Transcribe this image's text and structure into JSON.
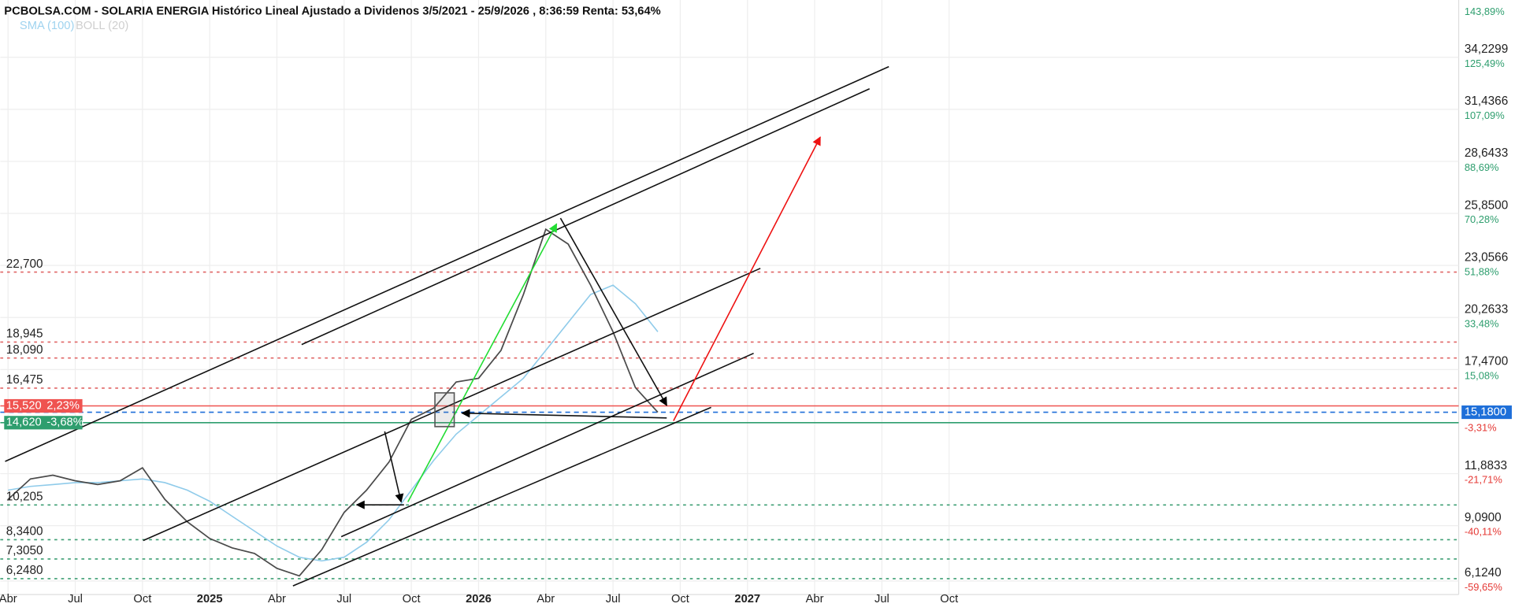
{
  "chart_data": {
    "type": "line",
    "title": "PCBOLSA.COM - SOLARIA ENERGIA Histórico Lineal Ajustado a Dividenos 3/5/2021 - 25/9/2026 , 8:36:59 Renta: 53,64%",
    "indicators": [
      "SMA (100)",
      "BOLL (20)"
    ],
    "categories": [
      "Abr",
      null,
      null,
      "Jul",
      null,
      null,
      "Oct",
      null,
      null,
      "2025",
      null,
      null,
      "Abr",
      null,
      null,
      "Jul",
      null,
      null,
      "Oct",
      null,
      null,
      "2026",
      null,
      null,
      "Abr",
      null,
      null,
      "Jul",
      null,
      null,
      "Oct",
      null,
      null,
      "2027",
      null,
      null,
      "Abr",
      null,
      null,
      "Jul",
      null,
      null,
      "Oct",
      null
    ],
    "values": [
      10.5,
      11.6,
      11.8,
      11.5,
      11.3,
      11.5,
      12.2,
      10.5,
      9.3,
      8.4,
      7.9,
      7.6,
      6.8,
      6.4,
      7.8,
      9.8,
      11.0,
      12.5,
      14.8,
      15.4,
      16.8,
      17.0,
      18.5,
      21.5,
      25.0,
      24.2,
      22.0,
      19.5,
      16.5,
      15.18,
      null,
      null,
      null,
      null,
      null,
      null,
      null,
      null,
      null,
      null,
      null,
      null,
      null,
      null
    ],
    "color": "#4a4a4a",
    "sma_values": [
      11.0,
      11.2,
      11.3,
      11.4,
      11.4,
      11.5,
      11.6,
      11.4,
      11.0,
      10.4,
      9.6,
      8.8,
      8.0,
      7.4,
      7.2,
      7.4,
      8.2,
      9.4,
      11.0,
      12.6,
      14.0,
      15.0,
      16.0,
      17.0,
      18.5,
      20.0,
      21.5,
      22.0,
      21.0,
      19.5,
      null,
      null,
      null,
      null,
      null,
      null,
      null,
      null,
      null,
      null,
      null,
      null,
      null,
      null
    ],
    "sma_color": "#8fcbea",
    "ylim": [
      5.6,
      37.2
    ],
    "yticks": [
      {
        "value": 34.2299,
        "label": "34,2299"
      },
      {
        "value": 31.4366,
        "label": "31,4366"
      },
      {
        "value": 28.6433,
        "label": "28,6433"
      },
      {
        "value": 25.85,
        "label": "25,8500"
      },
      {
        "value": 23.0566,
        "label": "23,0566"
      },
      {
        "value": 20.2633,
        "label": "20,2633"
      },
      {
        "value": 17.47,
        "label": "17,4700"
      },
      {
        "value": 11.8833,
        "label": "11,8833"
      },
      {
        "value": 9.09,
        "label": "9,0900"
      },
      {
        "value": 6.124,
        "label": "6,1240"
      }
    ],
    "y2lim": [
      -63.1,
      145.1
    ],
    "y2ticks": [
      {
        "value": 143.89,
        "label": "143,89%"
      },
      {
        "value": 125.49,
        "label": "125,49%"
      },
      {
        "value": 107.09,
        "label": "107,09%"
      },
      {
        "value": 88.69,
        "label": "88,69%"
      },
      {
        "value": 70.28,
        "label": "70,28%"
      },
      {
        "value": 51.88,
        "label": "51,88%"
      },
      {
        "value": 33.48,
        "label": "33,48%"
      },
      {
        "value": 15.08,
        "label": "15,08%"
      },
      {
        "value": -3.31,
        "label": "-3,31%"
      },
      {
        "value": -21.71,
        "label": "-21,71%"
      },
      {
        "value": -40.11,
        "label": "-40,11%"
      },
      {
        "value": -59.65,
        "label": "-59,65%"
      }
    ],
    "last": {
      "value": 15.18,
      "label": "15,1800",
      "color": "#1e6fd9"
    },
    "levels": [
      {
        "value": 22.7,
        "label": "22,700",
        "color": "#e06666"
      },
      {
        "value": 18.945,
        "label": "18,945",
        "color": "#e06666"
      },
      {
        "value": 18.09,
        "label": "18,090",
        "color": "#e06666"
      },
      {
        "value": 16.475,
        "label": "16,475",
        "color": "#e06666"
      },
      {
        "value": 10.205,
        "label": "10,205",
        "color": "#3f9f74"
      },
      {
        "value": 8.34,
        "label": "8,3400",
        "color": "#3f9f74"
      },
      {
        "value": 7.305,
        "label": "7,3050",
        "color": "#3f9f74"
      },
      {
        "value": 6.248,
        "label": "6,2480",
        "color": "#3f9f74"
      }
    ],
    "marks": [
      {
        "value": 15.52,
        "label": "15,520",
        "change": "2,23%",
        "color": "#ef5350"
      },
      {
        "value": 14.62,
        "label": "14,620",
        "change": "-3,68%",
        "color": "#2e9e6e"
      }
    ],
    "grid": true
  }
}
